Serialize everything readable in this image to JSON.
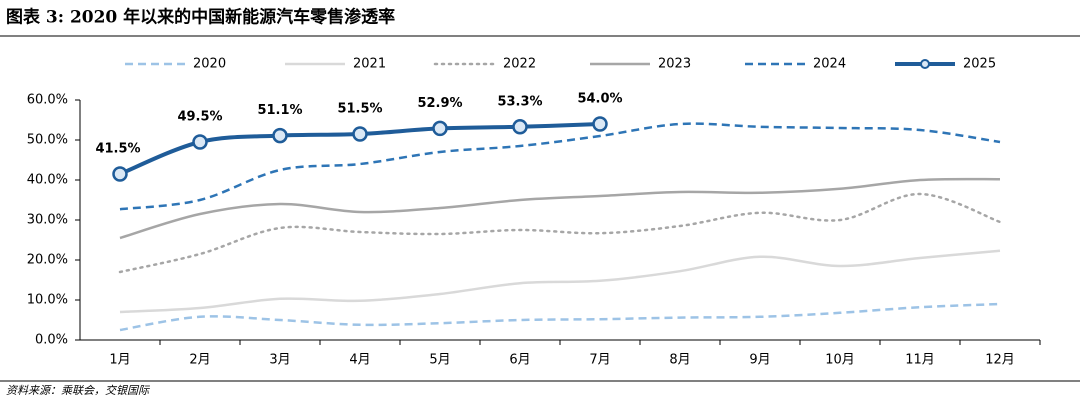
{
  "chart_data": {
    "type": "line",
    "title": "图表 3: 2020 年以来的中国新能源汽车零售渗透率",
    "source": "资料来源：乘联会，交银国际",
    "categories": [
      "1月",
      "2月",
      "3月",
      "4月",
      "5月",
      "6月",
      "7月",
      "8月",
      "9月",
      "10月",
      "11月",
      "12月"
    ],
    "ylim": [
      0,
      60
    ],
    "yticks": [
      {
        "value": 0,
        "label": "0.0%"
      },
      {
        "value": 10,
        "label": "10.0%"
      },
      {
        "value": 20,
        "label": "20.0%"
      },
      {
        "value": 30,
        "label": "30.0%"
      },
      {
        "value": 40,
        "label": "40.0%"
      },
      {
        "value": 50,
        "label": "50.0%"
      },
      {
        "value": 60,
        "label": "60.0%"
      }
    ],
    "legend": "top",
    "series": [
      {
        "name": "2020",
        "color": "#9dc3e6",
        "style": "dashed",
        "values": [
          2.5,
          5.8,
          5,
          3.8,
          4.2,
          5,
          5.2,
          5.6,
          5.8,
          6.8,
          8.2,
          9
        ]
      },
      {
        "name": "2021",
        "color": "#d9d9d9",
        "style": "solid",
        "values": [
          7,
          8,
          10.3,
          9.8,
          11.5,
          14.2,
          14.8,
          17.2,
          20.8,
          18.5,
          20.5,
          22.3
        ]
      },
      {
        "name": "2022",
        "color": "#a6a6a6",
        "style": "dotted",
        "values": [
          17,
          21.5,
          28,
          27,
          26.5,
          27.5,
          26.7,
          28.5,
          31.8,
          30,
          36.5,
          29.5
        ]
      },
      {
        "name": "2023",
        "color": "#a6a6a6",
        "style": "solid",
        "values": [
          25.5,
          31.5,
          34,
          32,
          33,
          35,
          36,
          37,
          36.8,
          37.8,
          40,
          40.2
        ]
      },
      {
        "name": "2024",
        "color": "#2e75b6",
        "style": "dashed",
        "values": [
          32.7,
          35,
          42.5,
          44,
          47,
          48.5,
          51,
          54,
          53.3,
          53,
          52.5,
          49.5
        ]
      },
      {
        "name": "2025",
        "color": "#1f5c99",
        "style": "solid",
        "marker": "circle",
        "values": [
          41.5,
          49.5,
          51.1,
          51.5,
          52.9,
          53.3,
          54.0,
          null,
          null,
          null,
          null,
          null
        ],
        "value_labels": [
          "41.5%",
          "49.5%",
          "51.1%",
          "51.5%",
          "52.9%",
          "53.3%",
          "54.0%",
          null,
          null,
          null,
          null,
          null
        ]
      }
    ]
  }
}
